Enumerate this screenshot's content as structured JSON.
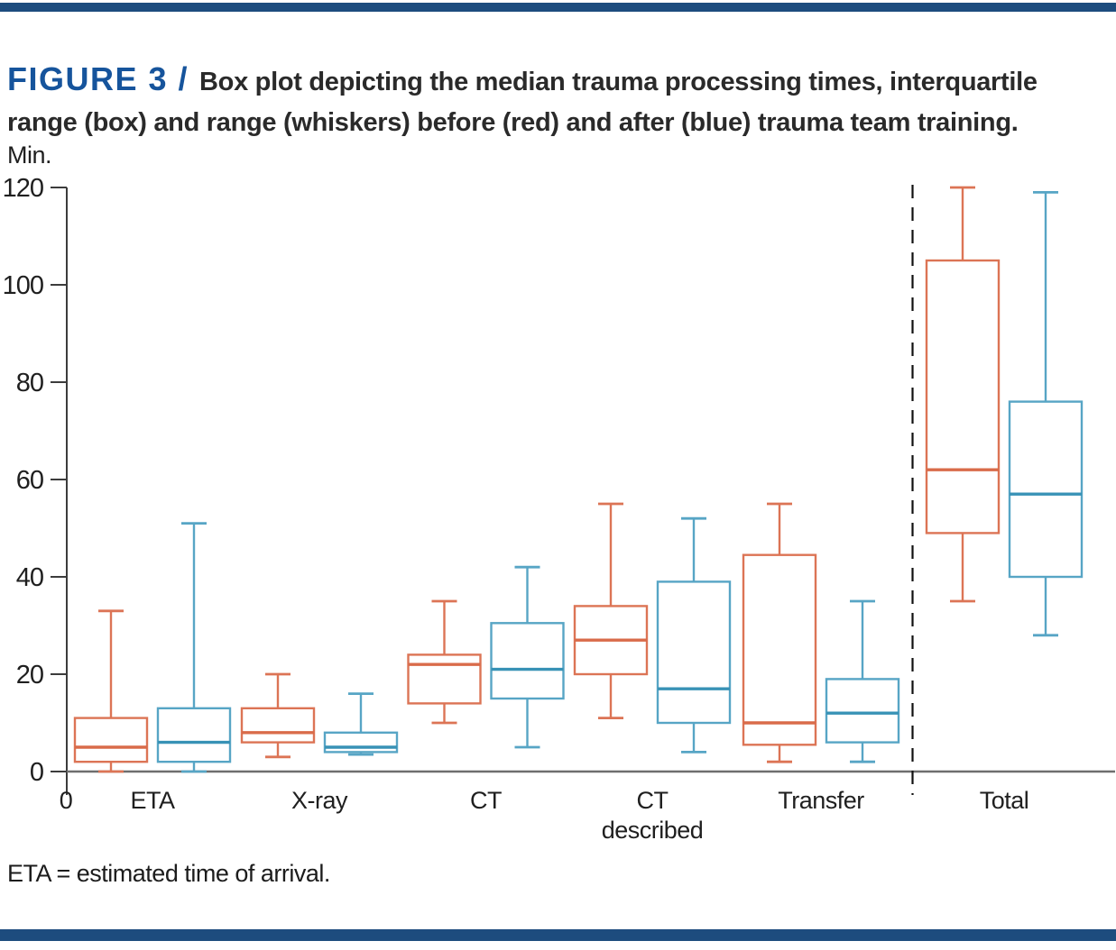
{
  "page": {
    "top_bar_color": "#1d4c7e",
    "bottom_bar_color": "#1d4c7e"
  },
  "title": {
    "figure_label": "FIGURE 3 /",
    "text": "Box plot depicting the median trauma processing times, interquartile range (box) and range (whiskers) before (red) and after (blue) trauma team training."
  },
  "footnote": {
    "text": "ETA = estimated time of arrival."
  },
  "chart_data": {
    "type": "boxplot",
    "title": "",
    "ylabel": "Min.",
    "xlabel": "",
    "ylim": [
      0,
      120
    ],
    "yticks": [
      0,
      20,
      40,
      60,
      80,
      100,
      120
    ],
    "origin_label": "0",
    "grid": false,
    "legend_position": "none",
    "separator_before_category": "Total",
    "categories": [
      "ETA",
      "X-ray",
      "CT",
      "CT described",
      "Transfer",
      "Total"
    ],
    "series": [
      {
        "name": "Before training (red)",
        "color": "#dc7455",
        "median_color": "#d96b4a",
        "stats": [
          {
            "min": 0,
            "q1": 2,
            "median": 5,
            "q3": 11,
            "max": 33
          },
          {
            "min": 3,
            "q1": 6,
            "median": 8,
            "q3": 13,
            "max": 20
          },
          {
            "min": 10,
            "q1": 14,
            "median": 22,
            "q3": 24,
            "max": 35
          },
          {
            "min": 11,
            "q1": 20,
            "median": 27,
            "q3": 34,
            "max": 55
          },
          {
            "min": 2,
            "q1": 5.5,
            "median": 10,
            "q3": 44.5,
            "max": 55
          },
          {
            "min": 35,
            "q1": 49,
            "median": 62,
            "q3": 105,
            "max": 120
          }
        ]
      },
      {
        "name": "After training (blue)",
        "color": "#57a5c5",
        "median_color": "#3892b6",
        "stats": [
          {
            "min": 0,
            "q1": 2,
            "median": 6,
            "q3": 13,
            "max": 51
          },
          {
            "min": 3.5,
            "q1": 4,
            "median": 5,
            "q3": 8,
            "max": 16
          },
          {
            "min": 5,
            "q1": 15,
            "median": 21,
            "q3": 30.5,
            "max": 42
          },
          {
            "min": 4,
            "q1": 10,
            "median": 17,
            "q3": 39,
            "max": 52
          },
          {
            "min": 2,
            "q1": 6,
            "median": 12,
            "q3": 19,
            "max": 35
          },
          {
            "min": 28,
            "q1": 40,
            "median": 57,
            "q3": 76,
            "max": 119
          }
        ]
      }
    ]
  }
}
